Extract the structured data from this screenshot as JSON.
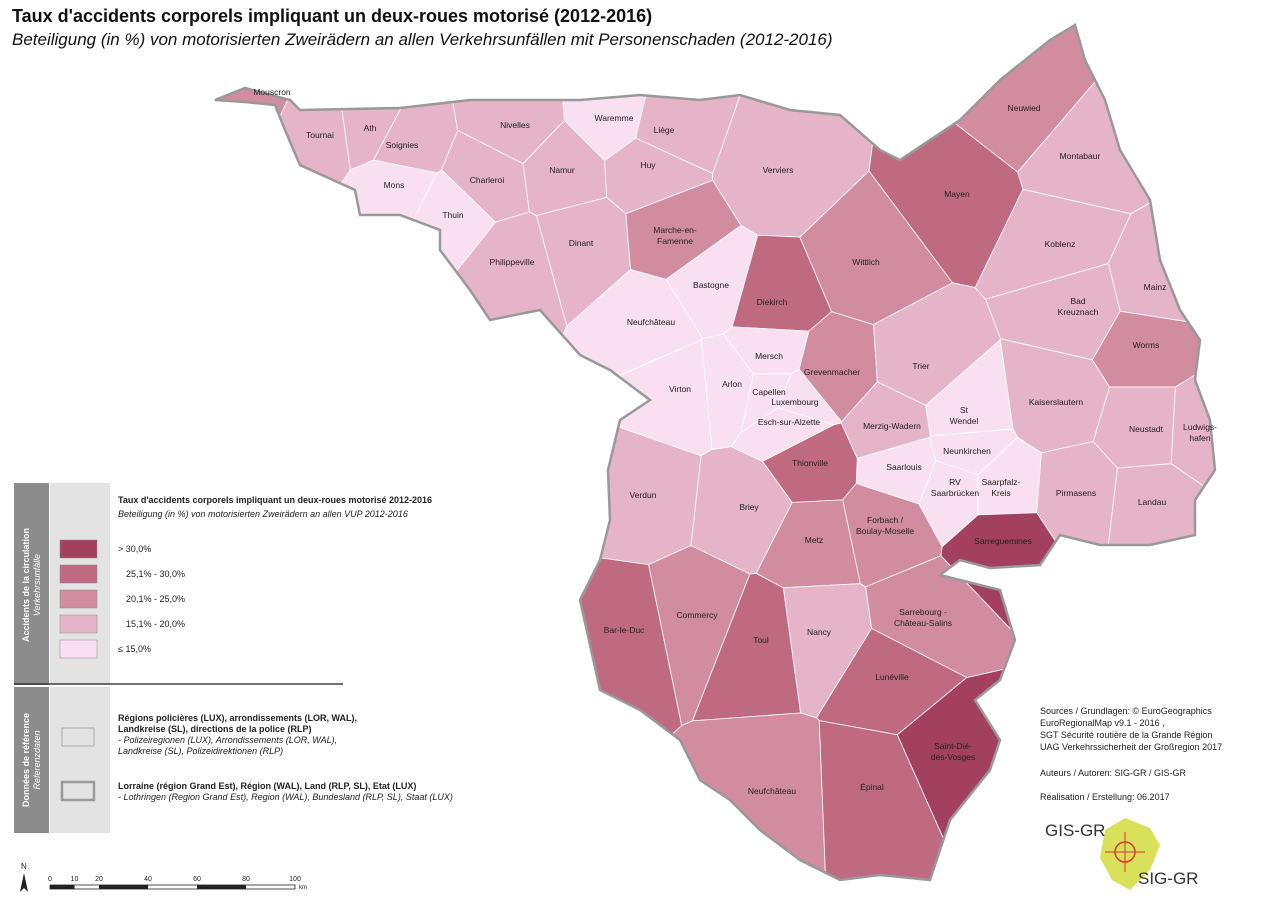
{
  "title": "Taux d'accidents corporels impliquant un deux-roues motorisé (2012-2016)",
  "subtitle": "Beteiligung (in %) von motorisierten Zweirädern an allen Verkehrsunfällen mit Personenschaden (2012-2016)",
  "legend": {
    "title": "Taux d'accidents corporels impliquant un deux-roues motorisé 2012-2016",
    "subtitle": "Beteiligung (in %) von motorisierten Zweirädern an allen VUP 2012-2016",
    "section_label": "Accidents de la circulation",
    "section_sublabel": "Verkehrsunfälle",
    "classes": [
      {
        "label": "> 30,0%",
        "color": "#a3405f"
      },
      {
        "label": "25,1% - 30,0%",
        "color": "#c06a82"
      },
      {
        "label": "20,1% - 25,0%",
        "color": "#d28ca0"
      },
      {
        "label": "15,1% - 20,0%",
        "color": "#e6b4c8"
      },
      {
        "label": "≤ 15,0%",
        "color": "#f8e0f0"
      }
    ],
    "reference_label": "Données de référence",
    "reference_sublabel": "Referenzdaten",
    "reference_items": [
      {
        "lines": [
          "Régions policières (LUX), arrondissements (LOR, WAL),",
          "Landkreise (SL), directions de la police (RLP)"
        ],
        "translation": [
          "- Polizeiregionen (LUX), Arrondissements (LOR, WAL),",
          "Landkreise (SL), Polizeidirektionen (RLP)"
        ]
      },
      {
        "lines": [
          "Lorraine (région Grand Est), Région (WAL), Land (RLP, SL), Etat (LUX)"
        ],
        "translation": [
          "- Lothringen (Region Grand Est), Region (WAL), Bundesland (RLP, SL), Staat (LUX)"
        ]
      }
    ]
  },
  "regions": [
    {
      "label": [
        "Mouscron"
      ],
      "color": "#d28ca0"
    },
    {
      "label": [
        "Tournai"
      ],
      "color": "#e6b4c8"
    },
    {
      "label": [
        "Ath"
      ],
      "color": "#e6b4c8"
    },
    {
      "label": [
        "Soignies"
      ],
      "color": "#e6b4c8"
    },
    {
      "label": [
        "Nivelles"
      ],
      "color": "#e6b4c8"
    },
    {
      "label": [
        "Waremme"
      ],
      "color": "#f8e0f0"
    },
    {
      "label": [
        "Liège"
      ],
      "color": "#e6b4c8"
    },
    {
      "label": [
        "Mons"
      ],
      "color": "#f8e0f0"
    },
    {
      "label": [
        "Charleroi"
      ],
      "color": "#e6b4c8"
    },
    {
      "label": [
        "Namur"
      ],
      "color": "#e6b4c8"
    },
    {
      "label": [
        "Huy"
      ],
      "color": "#e6b4c8"
    },
    {
      "label": [
        "Verviers"
      ],
      "color": "#e6b4c8"
    },
    {
      "label": [
        "Thuin"
      ],
      "color": "#f8e0f0"
    },
    {
      "label": [
        "Dinant"
      ],
      "color": "#e6b4c8"
    },
    {
      "label": [
        "Marche-en-",
        "Famenne"
      ],
      "color": "#d28ca0"
    },
    {
      "label": [
        "Philippeville"
      ],
      "color": "#e6b4c8"
    },
    {
      "label": [
        "Bastogne"
      ],
      "color": "#f8e0f0"
    },
    {
      "label": [
        "Neufchâteau"
      ],
      "color": "#f8e0f0"
    },
    {
      "label": [
        "Virton"
      ],
      "color": "#f8e0f0"
    },
    {
      "label": [
        "Arlon"
      ],
      "color": "#f8e0f0"
    },
    {
      "label": [
        "Diekirch"
      ],
      "color": "#c06a82"
    },
    {
      "label": [
        "Mersch"
      ],
      "color": "#f8e0f0"
    },
    {
      "label": [
        "Capellen"
      ],
      "color": "#f8e0f0"
    },
    {
      "label": [
        "Luxembourg"
      ],
      "color": "#f8e0f0"
    },
    {
      "label": [
        "Grevenmacher"
      ],
      "color": "#d28ca0"
    },
    {
      "label": [
        "Esch-sur-Alzette"
      ],
      "color": "#f8e0f0"
    },
    {
      "label": [
        "Neuwied"
      ],
      "color": "#d28ca0"
    },
    {
      "label": [
        "Montabaur"
      ],
      "color": "#e6b4c8"
    },
    {
      "label": [
        "Mayen"
      ],
      "color": "#c06a82"
    },
    {
      "label": [
        "Koblenz"
      ],
      "color": "#e6b4c8"
    },
    {
      "label": [
        "Wittlich"
      ],
      "color": "#d28ca0"
    },
    {
      "label": [
        "Mainz"
      ],
      "color": "#e6b4c8"
    },
    {
      "label": [
        "Bad",
        "Kreuznach"
      ],
      "color": "#e6b4c8"
    },
    {
      "label": [
        "Worms"
      ],
      "color": "#d28ca0"
    },
    {
      "label": [
        "Trier"
      ],
      "color": "#e6b4c8"
    },
    {
      "label": [
        "Kaiserslautern"
      ],
      "color": "#e6b4c8"
    },
    {
      "label": [
        "Merzig-Wadern"
      ],
      "color": "#e6b4c8"
    },
    {
      "label": [
        "St",
        "Wendel"
      ],
      "color": "#f8e0f0"
    },
    {
      "label": [
        "Neunkirchen"
      ],
      "color": "#f8e0f0"
    },
    {
      "label": [
        "Neustadt"
      ],
      "color": "#e6b4c8"
    },
    {
      "label": [
        "Ludwigs-",
        "hafen"
      ],
      "color": "#e6b4c8"
    },
    {
      "label": [
        "Saarlouis"
      ],
      "color": "#f8e0f0"
    },
    {
      "label": [
        "RV",
        "Saarbrücken"
      ],
      "color": "#f8e0f0"
    },
    {
      "label": [
        "Saarpfalz-",
        "Kreis"
      ],
      "color": "#f8e0f0"
    },
    {
      "label": [
        "Pirmasens"
      ],
      "color": "#e6b4c8"
    },
    {
      "label": [
        "Landau"
      ],
      "color": "#e6b4c8"
    },
    {
      "label": [
        "Thionville"
      ],
      "color": "#c06a82"
    },
    {
      "label": [
        "Verdun"
      ],
      "color": "#e6b4c8"
    },
    {
      "label": [
        "Briey"
      ],
      "color": "#e6b4c8"
    },
    {
      "label": [
        "Forbach /",
        "Boulay-Moselle"
      ],
      "color": "#d28ca0"
    },
    {
      "label": [
        "Metz"
      ],
      "color": "#d28ca0"
    },
    {
      "label": [
        "Sarreguemines"
      ],
      "color": "#a3405f"
    },
    {
      "label": [
        "Sarrebourg -",
        "Château-Salins"
      ],
      "color": "#d28ca0"
    },
    {
      "label": [
        "Bar-le-Duc"
      ],
      "color": "#c06a82"
    },
    {
      "label": [
        "Commercy"
      ],
      "color": "#d28ca0"
    },
    {
      "label": [
        "Toul"
      ],
      "color": "#c06a82"
    },
    {
      "label": [
        "Nancy"
      ],
      "color": "#e6b4c8"
    },
    {
      "label": [
        "Lunéville"
      ],
      "color": "#c06a82"
    },
    {
      "label": [
        "Saint-Dié-",
        "des-Vosges"
      ],
      "color": "#a3405f"
    },
    {
      "label": [
        "Neufchâteau"
      ],
      "color": "#d28ca0"
    },
    {
      "label": [
        "Épinal"
      ],
      "color": "#c06a82"
    }
  ],
  "sources": [
    "Sources / Grundlagen: © EuroGeographics",
    "EuroRegionalMap v9.1 - 2016 ,",
    "SGT Sécurité routière de la Grande Région",
    "UAG Verkehrssicherheit der Großregion 2017"
  ],
  "authors": "Auteurs / Autoren: SIG-GR / GIS-GR",
  "realisation": "Réalisation / Erstellung: 06.2017",
  "scale": {
    "ticks": [
      0,
      10,
      20,
      40,
      60,
      80,
      100
    ],
    "unit": "km"
  },
  "north": "N",
  "logo": {
    "top": "GIS-GR",
    "bottom": "SIG-GR"
  }
}
